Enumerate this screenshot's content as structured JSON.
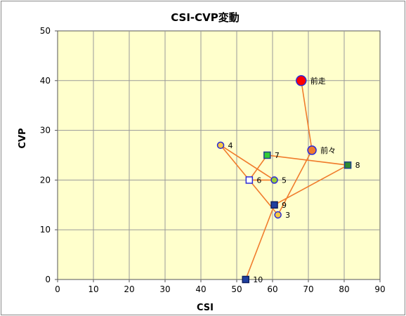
{
  "chart_data": {
    "type": "scatter",
    "title": "CSI-CVP変動",
    "xlabel": "CSI",
    "ylabel": "CVP",
    "xlim": [
      0,
      90
    ],
    "ylim": [
      0,
      50
    ],
    "x_ticks": [
      0,
      10,
      20,
      30,
      40,
      50,
      60,
      70,
      80,
      90
    ],
    "y_ticks": [
      0,
      10,
      20,
      30,
      40,
      50
    ],
    "grid": true,
    "legend": "none",
    "plot_background": "#ffffcc",
    "grid_color": "#9a9a9a",
    "line_color": "#f07c2c",
    "path_order": [
      "前走",
      "前々",
      "3",
      "4",
      "5",
      "6",
      "7",
      "8",
      "9",
      "10"
    ],
    "points": [
      {
        "label": "前走",
        "x": 68,
        "y": 40,
        "marker": "circle",
        "size": "large",
        "fill": "#ff0000",
        "stroke": "#2a2ad8"
      },
      {
        "label": "前々",
        "x": 71,
        "y": 26,
        "marker": "circle",
        "size": "medium",
        "fill": "#f07c2c",
        "stroke": "#2a2ad8"
      },
      {
        "label": "3",
        "x": 61.5,
        "y": 13,
        "marker": "circle",
        "size": "small",
        "fill": "#f5c842",
        "stroke": "#2a2ad8"
      },
      {
        "label": "4",
        "x": 45.5,
        "y": 27,
        "marker": "circle",
        "size": "small",
        "fill": "#f5c842",
        "stroke": "#2a2ad8"
      },
      {
        "label": "5",
        "x": 60.5,
        "y": 20,
        "marker": "circle",
        "size": "small",
        "fill": "#9acd32",
        "stroke": "#2a2ad8"
      },
      {
        "label": "6",
        "x": 53.5,
        "y": 20,
        "marker": "square",
        "size": "small",
        "fill": "#ffffff",
        "stroke": "#2a2ad8"
      },
      {
        "label": "7",
        "x": 58.5,
        "y": 25,
        "marker": "square",
        "size": "small",
        "fill": "#33cc33",
        "stroke": "#1f3f8f"
      },
      {
        "label": "8",
        "x": 81,
        "y": 23,
        "marker": "square",
        "size": "small",
        "fill": "#2e8b2e",
        "stroke": "#1f3f8f"
      },
      {
        "label": "9",
        "x": 60.5,
        "y": 15,
        "marker": "square",
        "size": "small",
        "fill": "#1f3fa0",
        "stroke": "#102060"
      },
      {
        "label": "10",
        "x": 52.5,
        "y": 0,
        "marker": "square",
        "size": "small",
        "fill": "#1f3fa0",
        "stroke": "#102060"
      }
    ]
  }
}
